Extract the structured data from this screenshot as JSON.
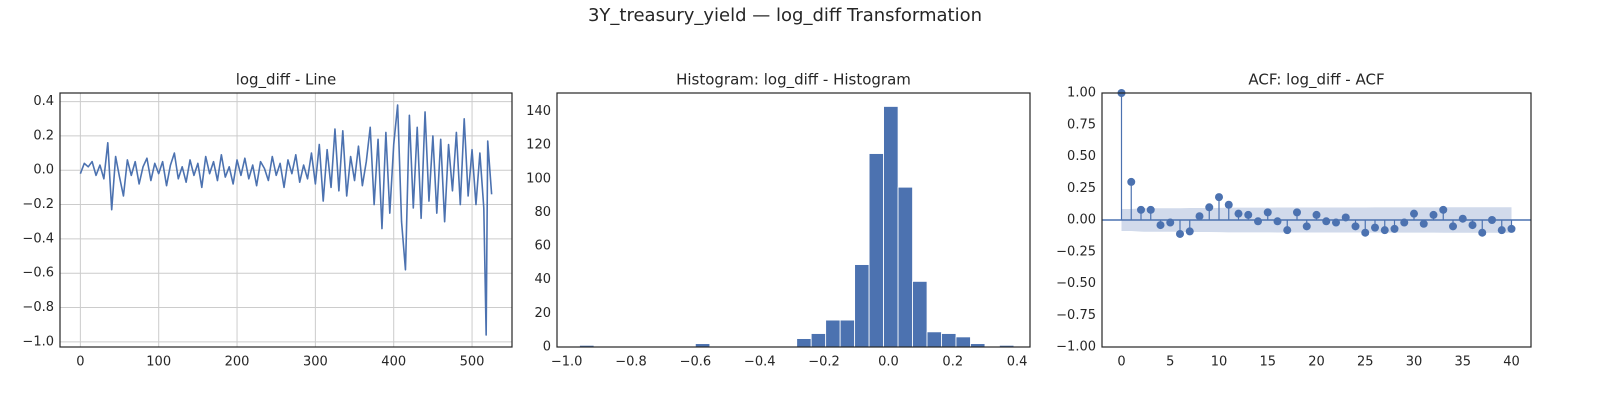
{
  "title": "3Y_treasury_yield — log_diff Transformation",
  "chart_data": [
    {
      "type": "line",
      "title": "log_diff - Line",
      "color": "#4c72b0",
      "grid": true,
      "x": [
        0,
        5,
        10,
        15,
        20,
        25,
        30,
        35,
        40,
        45,
        50,
        55,
        60,
        65,
        70,
        75,
        80,
        85,
        90,
        95,
        100,
        105,
        110,
        115,
        120,
        125,
        130,
        135,
        140,
        145,
        150,
        155,
        160,
        165,
        170,
        175,
        180,
        185,
        190,
        195,
        200,
        205,
        210,
        215,
        220,
        225,
        230,
        235,
        240,
        245,
        250,
        255,
        260,
        265,
        270,
        275,
        280,
        285,
        290,
        295,
        300,
        305,
        310,
        315,
        320,
        325,
        330,
        335,
        340,
        345,
        350,
        355,
        360,
        365,
        370,
        375,
        380,
        385,
        390,
        395,
        400,
        405,
        410,
        415,
        420,
        425,
        430,
        435,
        440,
        445,
        450,
        455,
        460,
        465,
        470,
        475,
        480,
        485,
        490,
        495,
        500,
        505,
        510,
        515,
        518,
        520,
        525
      ],
      "values": [
        -0.02,
        0.04,
        0.02,
        0.05,
        -0.03,
        0.03,
        -0.05,
        0.16,
        -0.23,
        0.08,
        -0.04,
        -0.15,
        0.06,
        -0.03,
        0.05,
        -0.08,
        0.02,
        0.07,
        -0.06,
        0.04,
        -0.02,
        0.05,
        -0.09,
        0.03,
        0.1,
        -0.05,
        0.02,
        -0.07,
        0.06,
        -0.03,
        0.04,
        -0.1,
        0.08,
        -0.02,
        0.05,
        -0.06,
        0.09,
        -0.04,
        0.02,
        -0.08,
        0.06,
        -0.03,
        0.07,
        -0.05,
        0.03,
        -0.09,
        0.05,
        0.01,
        -0.06,
        0.08,
        -0.03,
        0.04,
        -0.1,
        0.06,
        -0.02,
        0.09,
        -0.07,
        0.03,
        -0.05,
        0.1,
        -0.08,
        0.15,
        -0.18,
        0.12,
        -0.1,
        0.24,
        -0.12,
        0.23,
        -0.15,
        0.08,
        -0.06,
        0.14,
        -0.09,
        0.05,
        0.25,
        -0.2,
        0.18,
        -0.34,
        0.22,
        -0.25,
        0.15,
        0.38,
        -0.3,
        -0.58,
        0.32,
        -0.22,
        0.25,
        -0.28,
        0.34,
        -0.18,
        0.2,
        -0.25,
        0.18,
        -0.3,
        0.15,
        -0.12,
        0.22,
        -0.2,
        0.3,
        -0.15,
        0.12,
        -0.2,
        0.1,
        -0.22,
        -0.96,
        0.17,
        -0.14
      ],
      "xlim": [
        -26,
        551
      ],
      "ylim": [
        -1.03,
        0.45
      ],
      "xticks": [
        0,
        100,
        200,
        300,
        400,
        500
      ],
      "yticks": [
        {
          "value": -1.0,
          "label": "−1.0"
        },
        {
          "value": -0.8,
          "label": "−0.8"
        },
        {
          "value": -0.6,
          "label": "−0.6"
        },
        {
          "value": -0.4,
          "label": "−0.4"
        },
        {
          "value": -0.2,
          "label": "−0.2"
        },
        {
          "value": 0,
          "label": "0.0"
        },
        {
          "value": 0.2,
          "label": "0.2"
        },
        {
          "value": 0.4,
          "label": "0.4"
        }
      ]
    },
    {
      "type": "histogram",
      "title": "Histogram: log_diff - Histogram",
      "color": "#4c72b0",
      "bins": [
        -0.96,
        -0.915,
        -0.87,
        -0.825,
        -0.78,
        -0.735,
        -0.69,
        -0.645,
        -0.6,
        -0.555,
        -0.51,
        -0.465,
        -0.42,
        -0.375,
        -0.33,
        -0.285,
        -0.24,
        -0.195,
        -0.15,
        -0.105,
        -0.06,
        -0.015,
        0.03,
        0.075,
        0.12,
        0.165,
        0.21,
        0.255,
        0.3,
        0.345,
        0.39
      ],
      "values": [
        1,
        0,
        0,
        0,
        0,
        0,
        0,
        0,
        2,
        0,
        0,
        0,
        0,
        0,
        0,
        5,
        8,
        16,
        16,
        49,
        115,
        143,
        95,
        39,
        9,
        8,
        6,
        2,
        0,
        1
      ],
      "xlim": [
        -1.03,
        0.44
      ],
      "ylim": [
        0,
        151
      ],
      "xticks": [
        {
          "value": -1.0,
          "label": "−1.0"
        },
        {
          "value": -0.8,
          "label": "−0.8"
        },
        {
          "value": -0.6,
          "label": "−0.6"
        },
        {
          "value": -0.4,
          "label": "−0.4"
        },
        {
          "value": -0.2,
          "label": "−0.2"
        },
        {
          "value": 0,
          "label": "0.0"
        },
        {
          "value": 0.2,
          "label": "0.2"
        },
        {
          "value": 0.4,
          "label": "0.4"
        }
      ],
      "yticks": [
        0,
        20,
        40,
        60,
        80,
        100,
        120,
        140
      ]
    },
    {
      "type": "acf",
      "title": "ACF: log_diff - ACF",
      "color": "#4c72b0",
      "band_color": "#c9d3e8",
      "x": [
        0,
        1,
        2,
        3,
        4,
        5,
        6,
        7,
        8,
        9,
        10,
        11,
        12,
        13,
        14,
        15,
        16,
        17,
        18,
        19,
        20,
        21,
        22,
        23,
        24,
        25,
        26,
        27,
        28,
        29,
        30,
        31,
        32,
        33,
        34,
        35,
        36,
        37,
        38,
        39,
        40
      ],
      "values": [
        1.0,
        0.3,
        0.08,
        0.08,
        -0.04,
        -0.02,
        -0.11,
        -0.09,
        0.03,
        0.1,
        0.18,
        0.12,
        0.05,
        0.04,
        -0.01,
        0.06,
        -0.01,
        -0.08,
        0.06,
        -0.05,
        0.04,
        -0.01,
        -0.02,
        0.02,
        -0.05,
        -0.1,
        -0.06,
        -0.08,
        -0.07,
        -0.02,
        0.05,
        -0.03,
        0.04,
        0.08,
        -0.05,
        0.01,
        -0.04,
        -0.1,
        0.0,
        -0.08,
        -0.07
      ],
      "confint": [
        0.087,
        0.087,
        0.092,
        0.093,
        0.093,
        0.093,
        0.093,
        0.094,
        0.094,
        0.094,
        0.095,
        0.097,
        0.097,
        0.097,
        0.097,
        0.097,
        0.098,
        0.098,
        0.098,
        0.098,
        0.098,
        0.098,
        0.098,
        0.098,
        0.098,
        0.098,
        0.099,
        0.099,
        0.099,
        0.099,
        0.099,
        0.099,
        0.099,
        0.1,
        0.1,
        0.1,
        0.1,
        0.1,
        0.1,
        0.1,
        0.1
      ],
      "xlim": [
        -2,
        42
      ],
      "ylim": [
        -1,
        1
      ],
      "xticks": [
        0,
        5,
        10,
        15,
        20,
        25,
        30,
        35,
        40
      ],
      "yticks": [
        {
          "value": -1,
          "label": "−1.00"
        },
        {
          "value": -0.75,
          "label": "−0.75"
        },
        {
          "value": -0.5,
          "label": "−0.50"
        },
        {
          "value": -0.25,
          "label": "−0.25"
        },
        {
          "value": 0,
          "label": "0.00"
        },
        {
          "value": 0.25,
          "label": "0.25"
        },
        {
          "value": 0.5,
          "label": "0.50"
        },
        {
          "value": 0.75,
          "label": "0.75"
        },
        {
          "value": 1,
          "label": "1.00"
        }
      ]
    }
  ]
}
